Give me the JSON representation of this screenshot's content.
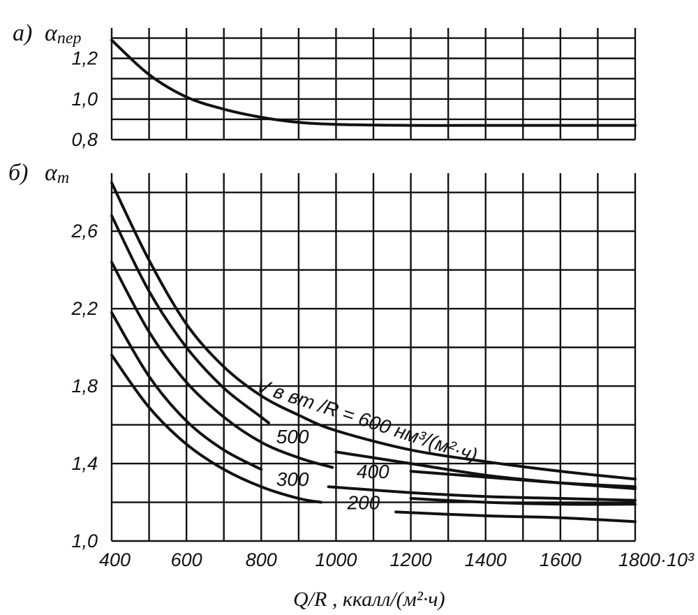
{
  "chart_data": [
    {
      "panel_label": "а)",
      "type": "line",
      "ylabel": "α",
      "ylabel_sub": "пер",
      "xlim": [
        400,
        1800
      ],
      "ylim": [
        0.8,
        1.35
      ],
      "xticks": [
        400,
        600,
        800,
        1000,
        1200,
        1400,
        1600,
        1800
      ],
      "yticks": [
        "1,2",
        "1,0",
        "0,8"
      ],
      "ytick_values": [
        1.2,
        1.0,
        0.8
      ],
      "grid": true,
      "series": [
        {
          "x": [
            400,
            500,
            600,
            700,
            800,
            900,
            1000,
            1200,
            1400,
            1600,
            1800
          ],
          "y": [
            1.29,
            1.12,
            1.01,
            0.95,
            0.91,
            0.885,
            0.875,
            0.87,
            0.87,
            0.87,
            0.87
          ]
        }
      ]
    },
    {
      "panel_label": "б)",
      "type": "line",
      "ylabel": "α",
      "ylabel_sub": "т",
      "xlim": [
        400,
        1800
      ],
      "ylim": [
        1.0,
        2.9
      ],
      "xticks": [
        400,
        600,
        800,
        1000,
        1200,
        1400,
        1600,
        1800
      ],
      "xtick_labels": [
        "400",
        "600",
        "800",
        "1000",
        "1200",
        "1400",
        "1600",
        "1800·10³"
      ],
      "yticks": [
        "2,6",
        "2,2",
        "1,8",
        "1,4",
        "1,0"
      ],
      "ytick_values": [
        2.6,
        2.2,
        1.8,
        1.4,
        1.0
      ],
      "grid": true,
      "xlabel": "Q/R , ккалл/(м²·ч)",
      "curve_title": "V в вт /R = 600 нм³/(м²·ч)",
      "series": [
        {
          "name": "600",
          "x": [
            400,
            500,
            600,
            700,
            800,
            900,
            1000,
            1200,
            1400,
            1600,
            1800
          ],
          "y": [
            2.85,
            2.45,
            2.12,
            1.9,
            1.75,
            1.65,
            1.57,
            1.47,
            1.41,
            1.36,
            1.32
          ]
        },
        {
          "name": "500",
          "x": [
            400,
            500,
            600,
            700,
            800,
            820
          ],
          "y": [
            2.68,
            2.29,
            2.0,
            1.79,
            1.64,
            1.61
          ]
        },
        {
          "name": "400",
          "x": [
            400,
            500,
            600,
            700,
            800,
            900,
            990
          ],
          "y": [
            2.44,
            2.08,
            1.82,
            1.64,
            1.51,
            1.43,
            1.38
          ]
        },
        {
          "name": "300",
          "x": [
            400,
            500,
            600,
            700,
            800
          ],
          "y": [
            2.18,
            1.85,
            1.62,
            1.47,
            1.37
          ]
        },
        {
          "name": "200",
          "x": [
            400,
            500,
            600,
            700,
            800,
            900,
            960
          ],
          "y": [
            1.96,
            1.69,
            1.5,
            1.37,
            1.28,
            1.22,
            1.2
          ]
        },
        {
          "name": "400-continued",
          "x": [
            1000,
            1200,
            1400,
            1600,
            1800
          ],
          "y": [
            1.46,
            1.4,
            1.34,
            1.3,
            1.27
          ]
        },
        {
          "name": "500-tail",
          "x": [
            1200,
            1400,
            1600,
            1800
          ],
          "y": [
            1.36,
            1.33,
            1.3,
            1.28
          ]
        },
        {
          "name": "300-continued",
          "x": [
            980,
            1200,
            1400,
            1600,
            1800
          ],
          "y": [
            1.28,
            1.25,
            1.23,
            1.22,
            1.21
          ]
        },
        {
          "name": "300-tail",
          "x": [
            1200,
            1400,
            1600,
            1800
          ],
          "y": [
            1.22,
            1.2,
            1.19,
            1.19
          ]
        },
        {
          "name": "200-tail",
          "x": [
            1160,
            1400,
            1600,
            1800
          ],
          "y": [
            1.15,
            1.13,
            1.12,
            1.1
          ]
        }
      ],
      "curve_labels": [
        {
          "text": "500",
          "x": 840,
          "y": 1.54
        },
        {
          "text": "400",
          "x": 1055,
          "y": 1.36
        },
        {
          "text": "300",
          "x": 840,
          "y": 1.32
        },
        {
          "text": "200",
          "x": 1030,
          "y": 1.2
        }
      ]
    }
  ]
}
